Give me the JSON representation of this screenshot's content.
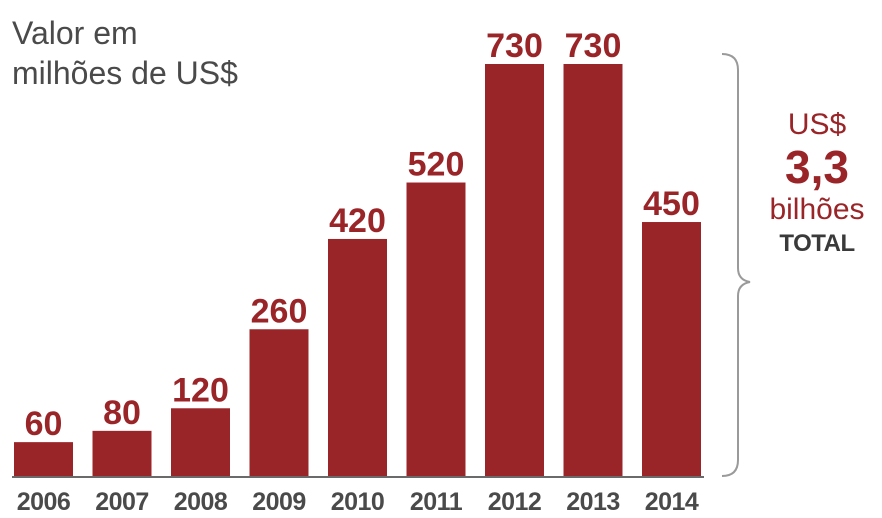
{
  "title_lines": [
    "Valor em",
    "milhões de US$"
  ],
  "total": {
    "currency": "US$",
    "value": "3,3",
    "unit": "bilhões",
    "label": "TOTAL"
  },
  "colors": {
    "bar": "#9a2528",
    "value_label": "#9a2528",
    "axis": "#4a4a4a",
    "title": "#4a4a4a",
    "bracket": "#9a9a9a"
  },
  "chart_data": {
    "type": "bar",
    "title": "Valor em milhões de US$",
    "xlabel": "",
    "ylabel": "",
    "categories": [
      "2006",
      "2007",
      "2008",
      "2009",
      "2010",
      "2011",
      "2012",
      "2013",
      "2014"
    ],
    "values": [
      60,
      80,
      120,
      260,
      420,
      520,
      730,
      730,
      450
    ],
    "ylim": [
      0,
      730
    ],
    "grid": false,
    "legend": "none"
  }
}
